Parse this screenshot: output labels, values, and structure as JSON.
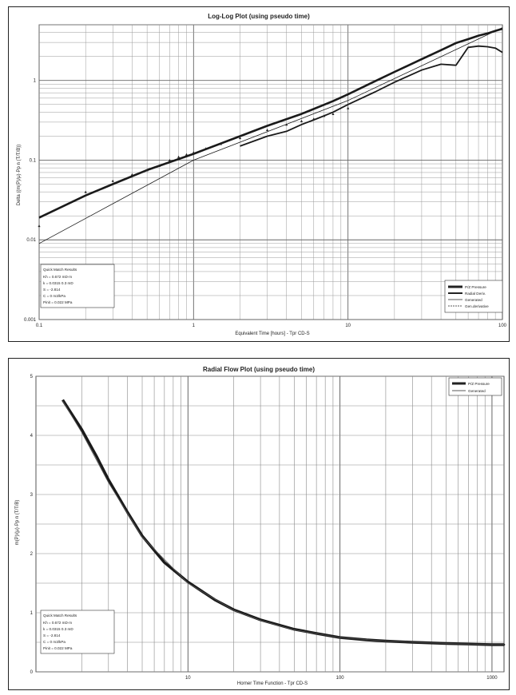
{
  "chart_data": [
    {
      "type": "line",
      "title": "Log-Log Plot (using pseudo time)",
      "xlabel": "Equivalent Time [hours] - Tpr CD-S",
      "ylabel": "Delta ((m(P)/μ)·Pp n (T/T/B))",
      "xscale": "log",
      "yscale": "log",
      "xlim": [
        0.1,
        100
      ],
      "ylim": [
        0.001,
        5
      ],
      "grid": true,
      "legend_position": "bottom-right",
      "x_ticks": [
        "0.1",
        "1",
        "10",
        "100"
      ],
      "y_ticks": [
        "1",
        "0.1",
        "0.01",
        "0.001"
      ],
      "quick_match": {
        "title": "Quick Match Results",
        "rows": [
          "Kh      = 0.672    mD·m",
          "k       = 0.0315  0.3 mD",
          "S       = -2.814",
          "C       = 0          m3/kPa",
          "Pinit = 0.022    MPa"
        ]
      },
      "series": [
        {
          "name": "P/Z Pressure",
          "x": [
            0.1,
            0.2,
            0.3,
            0.5,
            1,
            2,
            3,
            5,
            8,
            10,
            15,
            20,
            30,
            40,
            50,
            60,
            70,
            80,
            90,
            100
          ],
          "y": [
            0.019,
            0.036,
            0.05,
            0.075,
            0.12,
            0.2,
            0.27,
            0.38,
            0.55,
            0.67,
            0.98,
            1.28,
            1.85,
            2.4,
            2.95,
            3.3,
            3.65,
            3.9,
            4.2,
            4.45
          ]
        },
        {
          "name": "Radial Deriv.",
          "x": [
            2,
            3,
            4,
            5,
            6,
            7,
            8,
            10,
            15,
            20,
            30,
            40,
            50,
            60,
            70,
            80,
            90,
            100
          ],
          "y": [
            0.15,
            0.2,
            0.23,
            0.28,
            0.32,
            0.36,
            0.4,
            0.5,
            0.72,
            0.95,
            1.35,
            1.6,
            1.55,
            2.6,
            2.7,
            2.65,
            2.55,
            2.25
          ]
        },
        {
          "name": "Generated",
          "x": [
            0.1,
            1,
            10,
            100
          ],
          "y": [
            0.009,
            0.1,
            0.56,
            4.6
          ]
        },
        {
          "name": "Gen.derivative",
          "x": [
            0.1,
            0.2,
            0.3,
            0.4,
            0.5,
            0.6,
            0.7,
            0.8,
            0.9,
            1,
            1.2,
            1.5,
            2,
            3,
            4,
            5,
            6,
            7,
            8,
            10
          ],
          "y": [
            0.015,
            0.04,
            0.055,
            0.066,
            0.075,
            0.085,
            0.1,
            0.11,
            0.118,
            0.125,
            0.14,
            0.16,
            0.19,
            0.24,
            0.28,
            0.31,
            0.33,
            0.36,
            0.38,
            0.45
          ]
        }
      ]
    },
    {
      "type": "line",
      "title": "Radial Flow Plot (using pseudo time)",
      "xlabel": "Horner Time Function - Tpr CD-S",
      "ylabel": "m(P)/(μ)·Pp n (T/T/B)",
      "xscale": "log",
      "yscale": "linear",
      "xlim": [
        1,
        1200
      ],
      "ylim": [
        0,
        5
      ],
      "grid": true,
      "legend_position": "top-right",
      "x_ticks": [
        "10",
        "100",
        "1000"
      ],
      "y_ticks": [
        "5",
        "4",
        "3",
        "2",
        "1",
        "0"
      ],
      "quick_match": {
        "title": "Quick Match Results",
        "rows": [
          "Kh      = 0.672    mD·m",
          "k       = 0.0315  0.3 mD",
          "S       = -2.814",
          "C       = 0          m3/kPa",
          "Pinit = 0.022    MPa"
        ]
      },
      "series": [
        {
          "name": "P/Z Pressure",
          "x": [
            1.5,
            2,
            2.5,
            3,
            4,
            5,
            7,
            10,
            15,
            20,
            30,
            50,
            70,
            100,
            150,
            200,
            300,
            500,
            700,
            1000,
            1200
          ],
          "y": [
            4.6,
            4.1,
            3.65,
            3.25,
            2.7,
            2.3,
            1.85,
            1.52,
            1.22,
            1.05,
            0.88,
            0.72,
            0.65,
            0.58,
            0.54,
            0.52,
            0.5,
            0.48,
            0.47,
            0.46,
            0.46
          ]
        },
        {
          "name": "Generated",
          "x": [
            1.5,
            2,
            3,
            5,
            10,
            20,
            30,
            50,
            100,
            200,
            500,
            1000,
            1200
          ],
          "y": [
            4.58,
            4.05,
            3.2,
            2.28,
            1.5,
            1.04,
            0.87,
            0.71,
            0.58,
            0.52,
            0.48,
            0.46,
            0.46
          ]
        }
      ]
    }
  ]
}
